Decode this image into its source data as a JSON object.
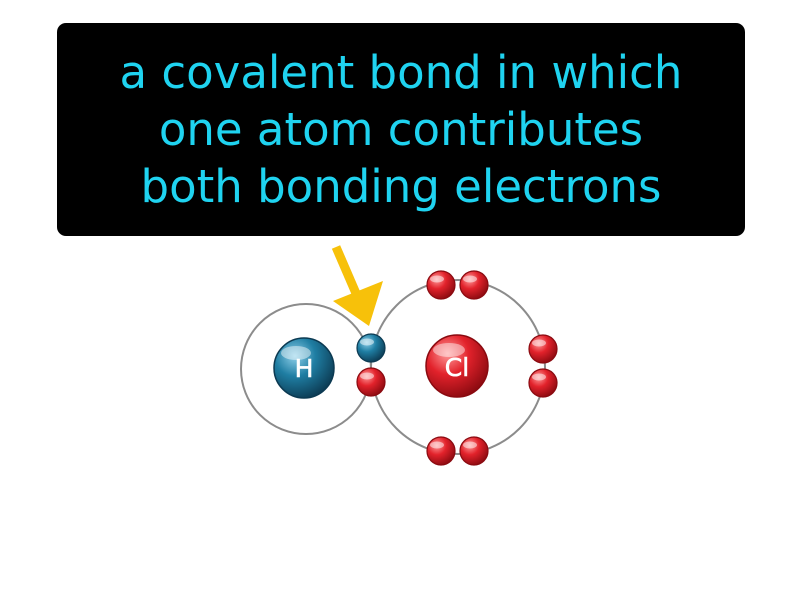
{
  "definition": {
    "lines": [
      "a covalent bond in which",
      "one atom contributes",
      "both bonding electrons"
    ]
  },
  "diagram": {
    "hydrogen": {
      "symbol": "H",
      "color": "#1d6b8c"
    },
    "chlorine": {
      "symbol": "Cl",
      "color": "#d8141e"
    },
    "electron_colors": {
      "red": "#d8141e",
      "blue": "#1d6b8c"
    },
    "arrow_color": "#f7c10a",
    "shell_color": "#8c8c8c"
  }
}
